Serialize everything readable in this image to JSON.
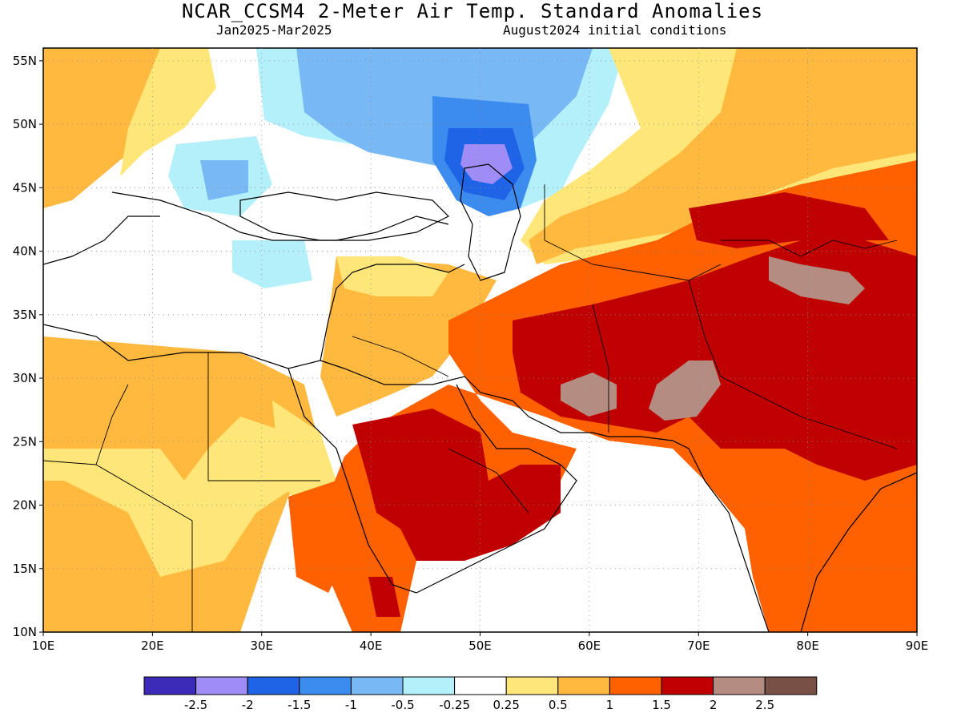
{
  "header": {
    "title": "NCAR_CCSM4 2-Meter Air Temp. Standard Anomalies",
    "period": "Jan2025-Mar2025",
    "init": "August2024 initial conditions"
  },
  "map": {
    "lon_range": [
      10,
      90
    ],
    "lat_range": [
      10,
      56
    ],
    "lon_ticks": [
      "10E",
      "20E",
      "30E",
      "40E",
      "50E",
      "60E",
      "70E",
      "80E",
      "90E"
    ],
    "lat_ticks": [
      "10N",
      "15N",
      "20N",
      "25N",
      "30N",
      "35N",
      "40N",
      "45N",
      "50N",
      "55N"
    ]
  },
  "colorbar": {
    "colors": [
      "#3b2bb8",
      "#a08cf5",
      "#1f63e6",
      "#3c8cf0",
      "#78b9f5",
      "#b4f0fa",
      "#ffffff",
      "#ffe678",
      "#ffb93f",
      "#ff6000",
      "#c00000",
      "#b48c82",
      "#785046"
    ],
    "labels": [
      "-2.5",
      "-2",
      "-1.5",
      "-1",
      "-0.5",
      "-0.25",
      "0.25",
      "0.5",
      "1",
      "1.5",
      "2",
      "2.5"
    ]
  },
  "colors": {
    "gray_land": "#b08a80"
  }
}
